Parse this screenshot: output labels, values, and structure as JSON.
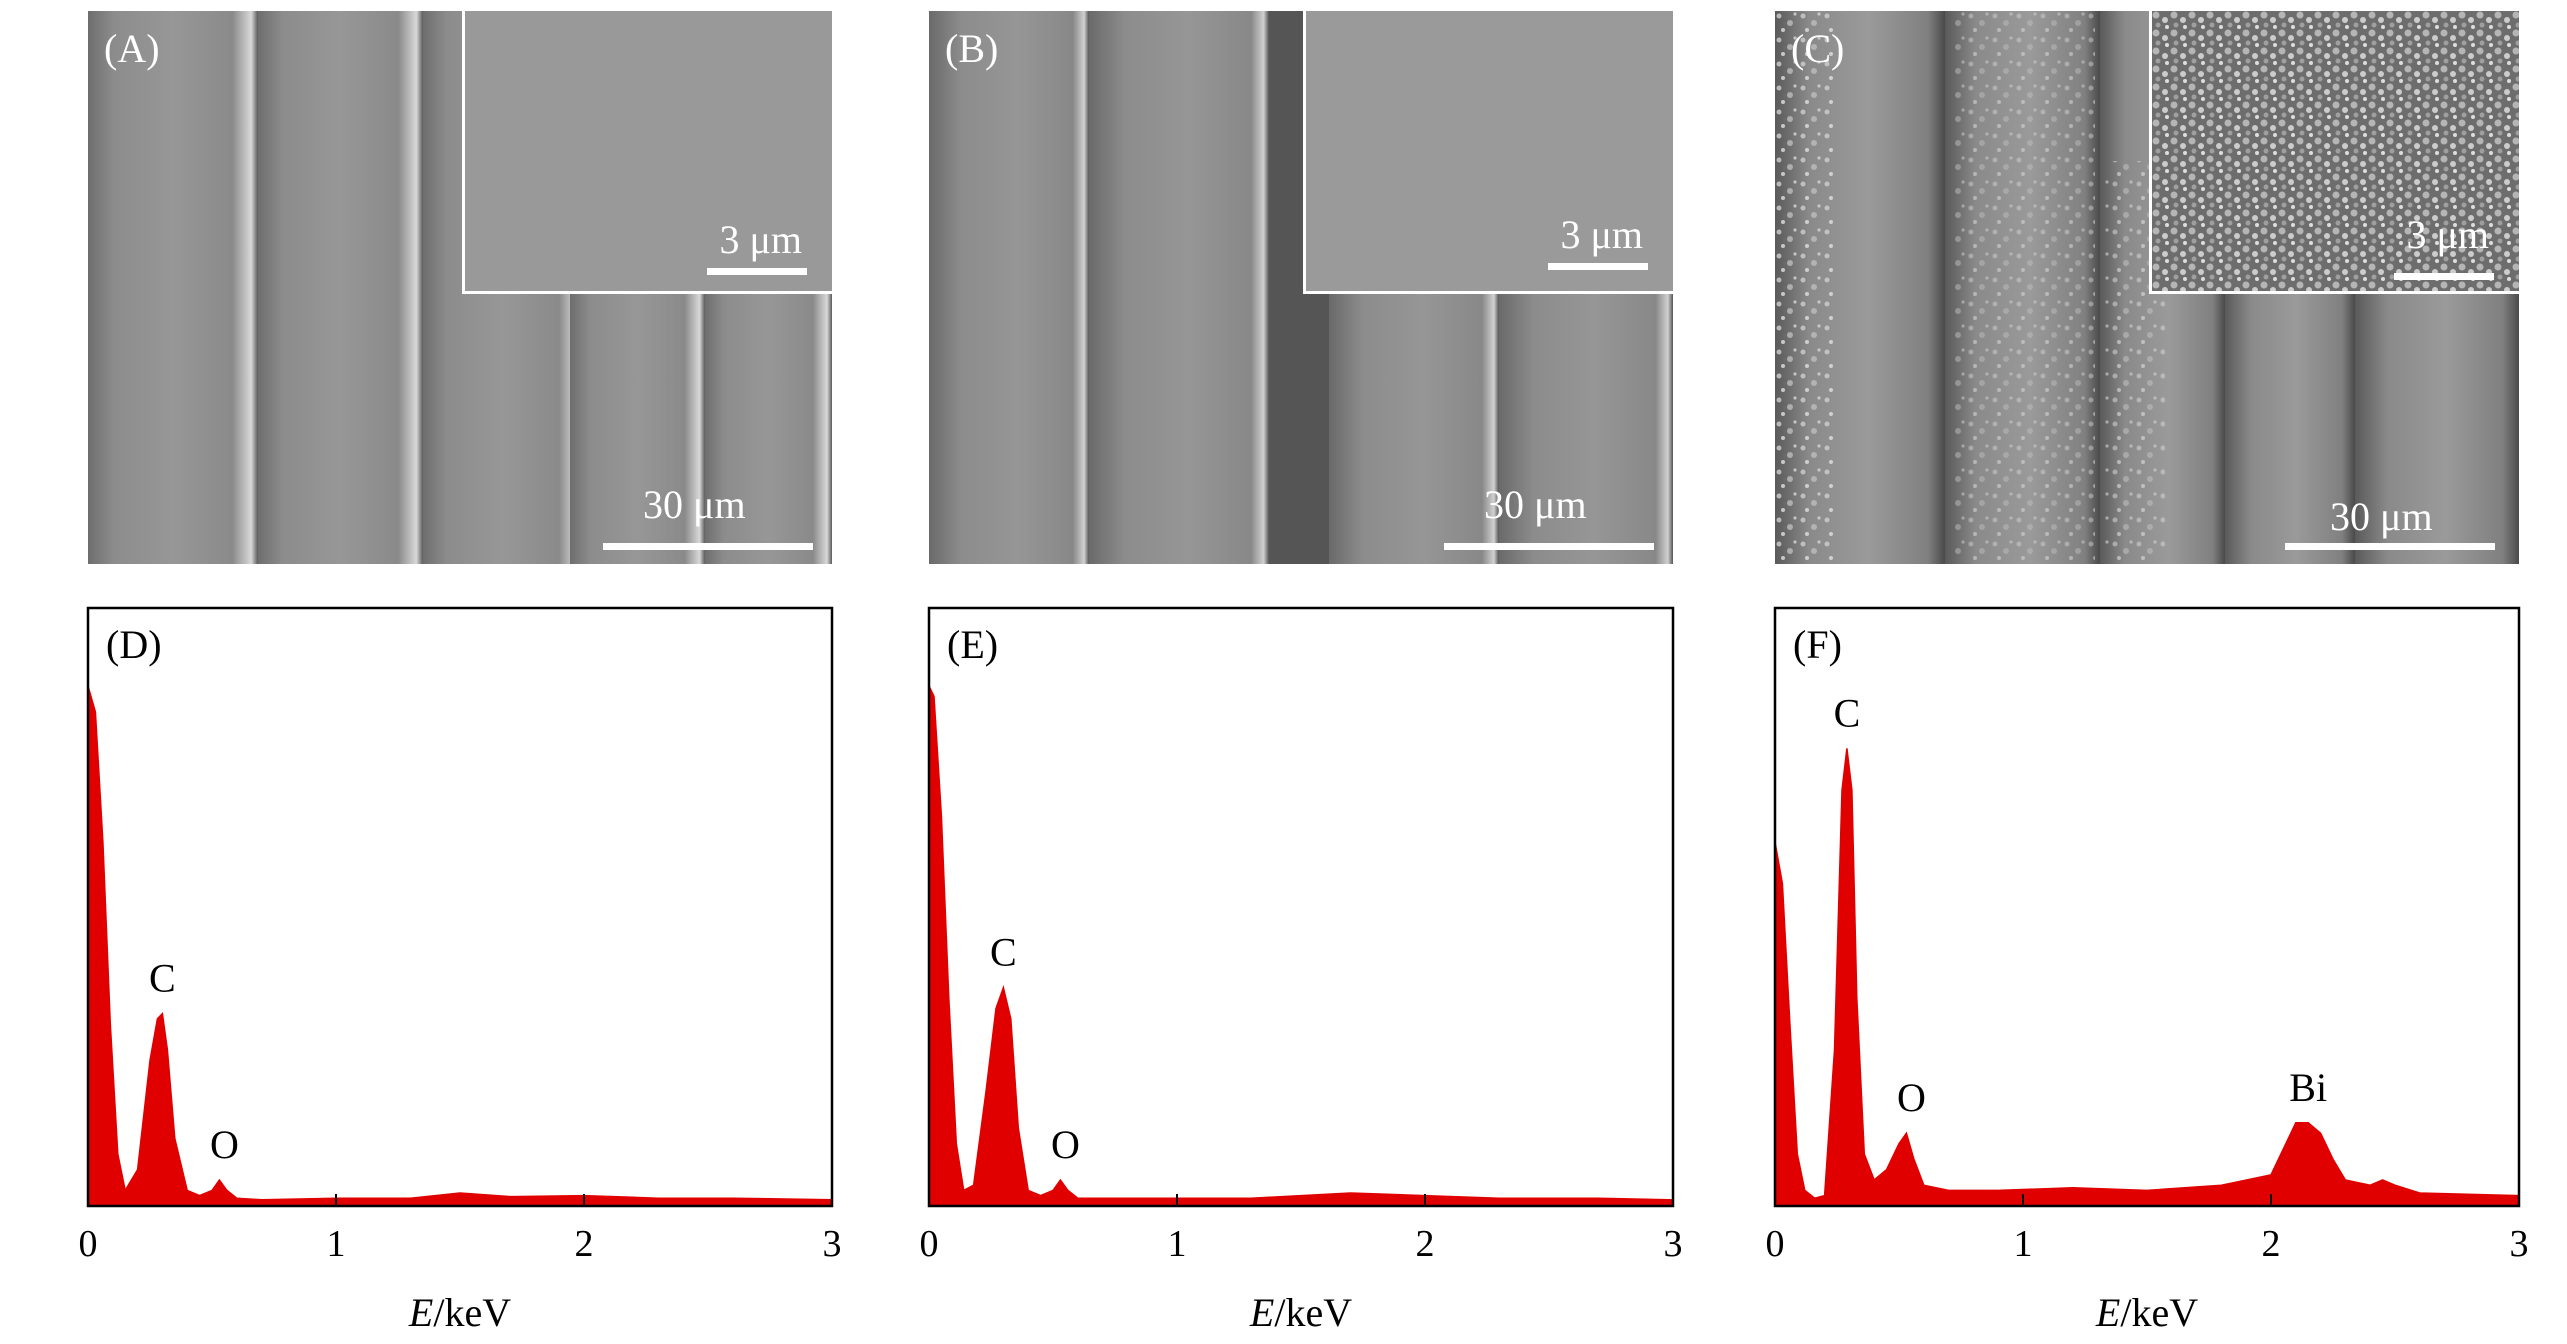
{
  "sem_panels": [
    {
      "label": "(A)",
      "inset_scale": "3 μm",
      "main_scale": "30 μm",
      "texture": "smooth"
    },
    {
      "label": "(B)",
      "inset_scale": "3 μm",
      "main_scale": "30 μm",
      "texture": "smooth"
    },
    {
      "label": "(C)",
      "inset_scale": "3 μm",
      "main_scale": "30 μm",
      "texture": "particles"
    }
  ],
  "colors": {
    "spectrum_fill": "#e00000",
    "axis": "#000000",
    "sem_fill": "#8a8a8a"
  },
  "chart_data": [
    {
      "type": "area",
      "panel_label": "(D)",
      "xlabel_italic": "E",
      "xlabel_unit": "/keV",
      "xlim": [
        0,
        3
      ],
      "xticks": [
        "0",
        "1",
        "2",
        "3"
      ],
      "ylim": [
        0,
        100
      ],
      "x": [
        0,
        0.03,
        0.06,
        0.09,
        0.12,
        0.15,
        0.2,
        0.25,
        0.28,
        0.3,
        0.32,
        0.35,
        0.4,
        0.45,
        0.5,
        0.53,
        0.56,
        0.6,
        0.7,
        1.0,
        1.3,
        1.5,
        1.7,
        2.0,
        2.3,
        2.6,
        3.0
      ],
      "y": [
        100,
        95,
        70,
        35,
        10,
        3,
        7,
        28,
        36,
        37,
        30,
        13,
        3,
        2,
        3,
        5,
        3,
        1.5,
        1.2,
        1.5,
        1.5,
        2.5,
        1.8,
        2.0,
        1.5,
        1.5,
        1.2
      ],
      "peaks": [
        {
          "label": "C",
          "x": 0.3,
          "y": 37
        },
        {
          "label": "O",
          "x": 0.55,
          "y": 5
        }
      ]
    },
    {
      "type": "area",
      "panel_label": "(E)",
      "xlabel_italic": "E",
      "xlabel_unit": "/keV",
      "xlim": [
        0,
        3
      ],
      "xticks": [
        "0",
        "1",
        "2",
        "3"
      ],
      "ylim": [
        0,
        100
      ],
      "x": [
        0,
        0.02,
        0.05,
        0.08,
        0.11,
        0.14,
        0.18,
        0.23,
        0.27,
        0.3,
        0.33,
        0.36,
        0.4,
        0.45,
        0.5,
        0.53,
        0.56,
        0.6,
        0.8,
        1.0,
        1.3,
        1.7,
        2.0,
        2.3,
        2.7,
        3.0
      ],
      "y": [
        100,
        98,
        75,
        40,
        12,
        3,
        4,
        22,
        38,
        42,
        36,
        15,
        3,
        2,
        3,
        5,
        3,
        1.5,
        1.5,
        1.5,
        1.5,
        2.5,
        2.0,
        1.5,
        1.5,
        1.2
      ],
      "peaks": [
        {
          "label": "C",
          "x": 0.3,
          "y": 42
        },
        {
          "label": "O",
          "x": 0.55,
          "y": 5
        }
      ]
    },
    {
      "type": "area",
      "panel_label": "(F)",
      "xlabel_italic": "E",
      "xlabel_unit": "/keV",
      "xlim": [
        0,
        3
      ],
      "xticks": [
        "0",
        "1",
        "2",
        "3"
      ],
      "ylim": [
        0,
        100
      ],
      "x": [
        0,
        0.03,
        0.06,
        0.09,
        0.12,
        0.16,
        0.2,
        0.24,
        0.27,
        0.29,
        0.31,
        0.33,
        0.36,
        0.4,
        0.45,
        0.5,
        0.53,
        0.56,
        0.6,
        0.7,
        0.9,
        1.2,
        1.5,
        1.8,
        2.0,
        2.05,
        2.1,
        2.15,
        2.2,
        2.25,
        2.3,
        2.4,
        2.45,
        2.5,
        2.6,
        3.0
      ],
      "y": [
        70,
        62,
        35,
        10,
        3,
        1.5,
        2,
        30,
        80,
        88,
        80,
        40,
        10,
        5,
        7,
        12,
        14,
        9,
        4,
        3,
        3,
        3.5,
        3,
        4,
        6,
        11,
        16,
        16,
        14,
        9,
        5,
        4,
        5,
        4,
        2.5,
        2
      ],
      "peaks": [
        {
          "label": "C",
          "x": 0.29,
          "y": 88
        },
        {
          "label": "O",
          "x": 0.55,
          "y": 14
        },
        {
          "label": "Bi",
          "x": 2.15,
          "y": 16
        }
      ]
    }
  ]
}
